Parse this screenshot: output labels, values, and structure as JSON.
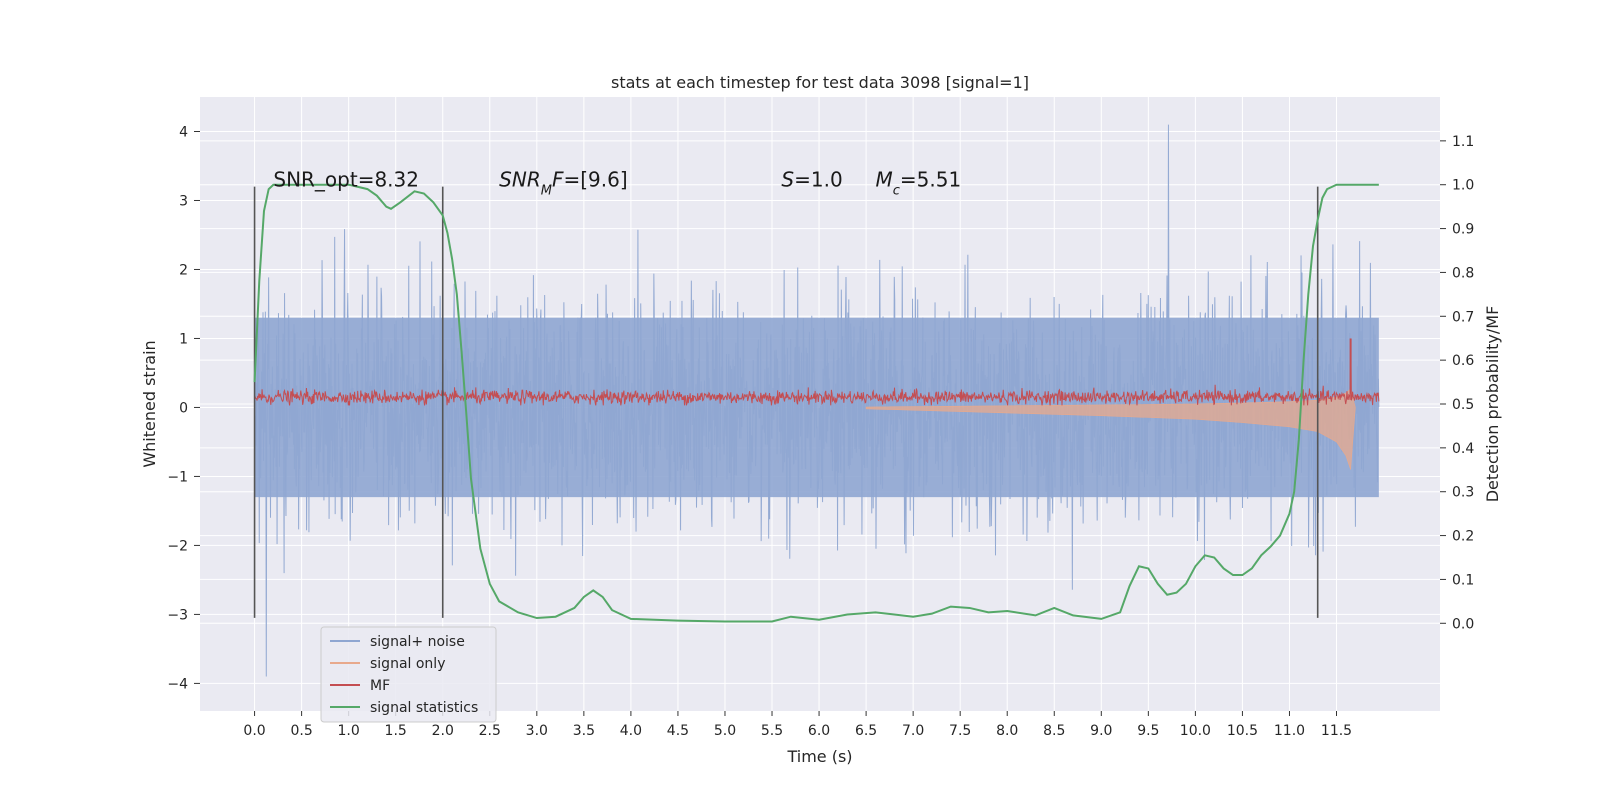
{
  "chart_data": {
    "type": "line",
    "title": "stats at each timestep for test data 3098 [signal=1]",
    "xlabel": "Time (s)",
    "ylabel_left": "Whitened strain",
    "ylabel_right": "Detection probability/MF",
    "xlim": [
      -0.58,
      12.6
    ],
    "ylim_left": [
      -4.4,
      4.5
    ],
    "ylim_right": [
      -0.2,
      1.2
    ],
    "x_ticks": [
      0.0,
      0.5,
      1.0,
      1.5,
      2.0,
      2.5,
      3.0,
      3.5,
      4.0,
      4.5,
      5.0,
      5.5,
      6.0,
      6.5,
      7.0,
      7.5,
      8.0,
      8.5,
      9.0,
      9.5,
      10.0,
      10.5,
      11.0,
      11.5
    ],
    "x_tick_labels": [
      "0.0",
      "0.5",
      "1.0",
      "1.5",
      "2.0",
      "2.5",
      "3.0",
      "3.5",
      "4.0",
      "4.5",
      "5.0",
      "5.5",
      "6.0",
      "6.5",
      "7.0",
      "7.5",
      "8.0",
      "8.5",
      "9.0",
      "9.5",
      "10.0",
      "10.5",
      "11.0",
      "11.5"
    ],
    "y_left_ticks": [
      -4,
      -3,
      -2,
      -1,
      0,
      1,
      2,
      3,
      4
    ],
    "y_left_tick_labels": [
      "−4",
      "−3",
      "−2",
      "−1",
      "0",
      "1",
      "2",
      "3",
      "4"
    ],
    "y_right_ticks": [
      0.0,
      0.1,
      0.2,
      0.3,
      0.4,
      0.5,
      0.6,
      0.7,
      0.8,
      0.9,
      1.0,
      1.1
    ],
    "y_right_tick_labels": [
      "0.0",
      "0.1",
      "0.2",
      "0.3",
      "0.4",
      "0.5",
      "0.6",
      "0.7",
      "0.8",
      "0.9",
      "1.0",
      "1.1"
    ],
    "grid": true,
    "legend_placement": "lower-left",
    "annotations": [
      {
        "text": "SNR_opt=8.32",
        "x": 0.2,
        "y": 3.2
      },
      {
        "text": "SNR_MF=[9.6]",
        "x": 2.6,
        "y": 3.2
      },
      {
        "text": "S=1.0",
        "x": 5.6,
        "y": 3.2
      },
      {
        "text": "M_c=5.51",
        "x": 6.6,
        "y": 3.2
      }
    ],
    "window_markers": [
      0.0,
      2.0,
      11.3
    ],
    "window_marker_range": [
      -3.05,
      3.2
    ],
    "series": [
      {
        "name": "signal+ noise",
        "axis": "left",
        "color": "#8fa6d1",
        "style": "noise-band",
        "x_range": [
          0.0,
          11.95
        ],
        "typical_extent": [
          -1.3,
          1.3
        ],
        "max": 4.1,
        "min": -3.9
      },
      {
        "name": "signal only",
        "axis": "left",
        "color": "#e8a98c",
        "style": "chirp",
        "x": [
          6.5,
          8.0,
          9.0,
          10.0,
          10.5,
          11.0,
          11.3,
          11.5,
          11.6,
          11.65,
          11.7
        ],
        "amplitude": [
          0.02,
          0.08,
          0.12,
          0.17,
          0.22,
          0.28,
          0.35,
          0.5,
          0.7,
          0.9,
          0.0
        ]
      },
      {
        "name": "MF",
        "axis": "left",
        "color": "#c44e52",
        "style": "noise-band",
        "x_range": [
          0.0,
          11.95
        ],
        "typical_extent": [
          0.05,
          0.25
        ],
        "peak_x": 11.65,
        "peak_value": 1.0
      },
      {
        "name": "signal statistics",
        "axis": "right",
        "color": "#55a868",
        "style": "line",
        "x": [
          0.0,
          0.05,
          0.1,
          0.15,
          0.2,
          0.3,
          0.5,
          0.8,
          1.0,
          1.1,
          1.2,
          1.3,
          1.4,
          1.45,
          1.55,
          1.7,
          1.8,
          1.9,
          2.0,
          2.05,
          2.1,
          2.15,
          2.2,
          2.25,
          2.3,
          2.4,
          2.5,
          2.6,
          2.8,
          3.0,
          3.2,
          3.4,
          3.5,
          3.6,
          3.7,
          3.8,
          4.0,
          4.5,
          5.0,
          5.5,
          5.7,
          6.0,
          6.3,
          6.6,
          7.0,
          7.2,
          7.4,
          7.6,
          7.8,
          8.0,
          8.3,
          8.5,
          8.7,
          9.0,
          9.2,
          9.3,
          9.4,
          9.5,
          9.6,
          9.7,
          9.8,
          9.9,
          10.0,
          10.1,
          10.2,
          10.3,
          10.4,
          10.5,
          10.6,
          10.7,
          10.8,
          10.9,
          11.0,
          11.05,
          11.1,
          11.15,
          11.2,
          11.25,
          11.3,
          11.35,
          11.4,
          11.5,
          11.6,
          11.7,
          11.95
        ],
        "y": [
          0.55,
          0.78,
          0.94,
          0.99,
          1.0,
          1.0,
          1.0,
          1.0,
          1.0,
          0.995,
          0.99,
          0.975,
          0.95,
          0.945,
          0.96,
          0.985,
          0.98,
          0.96,
          0.93,
          0.89,
          0.83,
          0.75,
          0.62,
          0.48,
          0.33,
          0.17,
          0.09,
          0.05,
          0.025,
          0.012,
          0.015,
          0.035,
          0.06,
          0.075,
          0.06,
          0.03,
          0.01,
          0.006,
          0.004,
          0.004,
          0.015,
          0.008,
          0.02,
          0.025,
          0.015,
          0.022,
          0.038,
          0.035,
          0.025,
          0.028,
          0.018,
          0.035,
          0.018,
          0.01,
          0.025,
          0.085,
          0.13,
          0.125,
          0.09,
          0.065,
          0.07,
          0.09,
          0.13,
          0.155,
          0.15,
          0.125,
          0.11,
          0.11,
          0.125,
          0.155,
          0.175,
          0.2,
          0.25,
          0.3,
          0.42,
          0.6,
          0.75,
          0.86,
          0.92,
          0.97,
          0.99,
          1.0,
          1.0,
          1.0,
          1.0
        ]
      }
    ]
  }
}
